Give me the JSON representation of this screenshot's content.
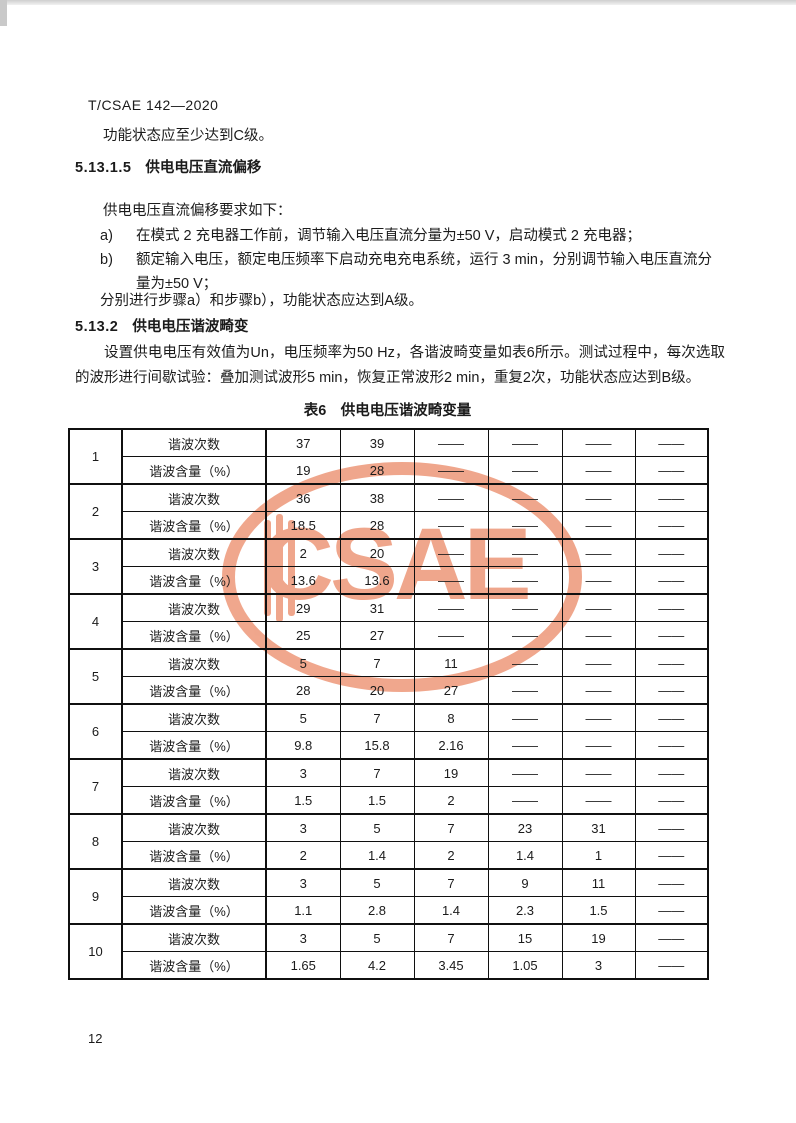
{
  "doc": {
    "header": "T/CSAE 142—2020",
    "para_intro": "功能状态应至少达到C级。",
    "sec1": {
      "number": "5.13.1.5",
      "title": "供电电压直流偏移"
    },
    "sec1_lead": "供电电压直流偏移要求如下：",
    "list": [
      {
        "label": "a)",
        "text": "在模式 2 充电器工作前，调节输入电压直流分量为±50 V，启动模式 2 充电器；"
      },
      {
        "label": "b)",
        "text": "额定输入电压，额定电压频率下启动充电充电系统，运行 3 min，分别调节输入电压直流分量为±50 V；"
      }
    ],
    "sec1_close": "分别进行步骤a）和步骤b），功能状态应达到A级。",
    "sec2": {
      "number": "5.13.2",
      "title": "供电电压谐波畸变"
    },
    "sec2_para": "设置供电电压有效值为Un，电压频率为50 Hz，各谐波畸变量如表6所示。测试过程中，每次选取的波形进行间歇试验：叠加测试波形5 min，恢复正常波形2 min，重复2次，功能状态应达到B级。",
    "table_caption": "表6　供电电压谐波畸变量",
    "page_number": "12"
  },
  "watermark": {
    "text": "CSAE",
    "color": "#ec9170"
  },
  "chart_data": {
    "type": "table",
    "title": "表6 供电电压谐波畸变量",
    "row_labels": {
      "order": "谐波次数",
      "content": "谐波含量（%）"
    },
    "empty_cell": "——",
    "groups": [
      {
        "no": "1",
        "order": [
          "37",
          "39",
          "——",
          "——",
          "——",
          "——"
        ],
        "content": [
          "19",
          "28",
          "——",
          "——",
          "——",
          "——"
        ]
      },
      {
        "no": "2",
        "order": [
          "36",
          "38",
          "——",
          "——",
          "——",
          "——"
        ],
        "content": [
          "18.5",
          "28",
          "——",
          "——",
          "——",
          "——"
        ]
      },
      {
        "no": "3",
        "order": [
          "2",
          "20",
          "——",
          "——",
          "——",
          "——"
        ],
        "content": [
          "13.6",
          "13.6",
          "——",
          "——",
          "——",
          "——"
        ]
      },
      {
        "no": "4",
        "order": [
          "29",
          "31",
          "——",
          "——",
          "——",
          "——"
        ],
        "content": [
          "25",
          "27",
          "——",
          "——",
          "——",
          "——"
        ]
      },
      {
        "no": "5",
        "order": [
          "5",
          "7",
          "11",
          "——",
          "——",
          "——"
        ],
        "content": [
          "28",
          "20",
          "27",
          "——",
          "——",
          "——"
        ]
      },
      {
        "no": "6",
        "order": [
          "5",
          "7",
          "8",
          "——",
          "——",
          "——"
        ],
        "content": [
          "9.8",
          "15.8",
          "2.16",
          "——",
          "——",
          "——"
        ]
      },
      {
        "no": "7",
        "order": [
          "3",
          "7",
          "19",
          "——",
          "——",
          "——"
        ],
        "content": [
          "1.5",
          "1.5",
          "2",
          "——",
          "——",
          "——"
        ]
      },
      {
        "no": "8",
        "order": [
          "3",
          "5",
          "7",
          "23",
          "31",
          "——"
        ],
        "content": [
          "2",
          "1.4",
          "2",
          "1.4",
          "1",
          "——"
        ]
      },
      {
        "no": "9",
        "order": [
          "3",
          "5",
          "7",
          "9",
          "11",
          "——"
        ],
        "content": [
          "1.1",
          "2.8",
          "1.4",
          "2.3",
          "1.5",
          "——"
        ]
      },
      {
        "no": "10",
        "order": [
          "3",
          "5",
          "7",
          "15",
          "19",
          "——"
        ],
        "content": [
          "1.65",
          "4.2",
          "3.45",
          "1.05",
          "3",
          "——"
        ]
      }
    ]
  }
}
